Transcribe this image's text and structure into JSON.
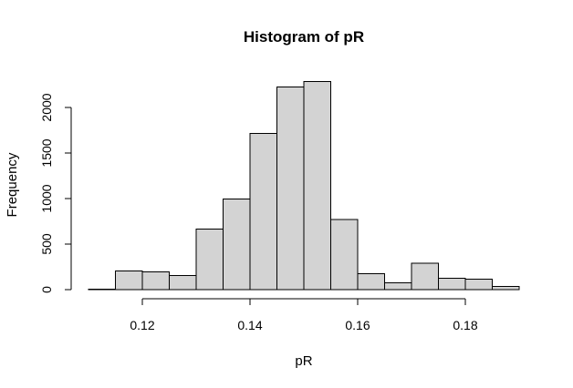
{
  "chart_data": {
    "type": "bar",
    "title": "Histogram of pR",
    "xlabel": "pR",
    "ylabel": "Frequency",
    "bin_edges": [
      0.11,
      0.115,
      0.12,
      0.125,
      0.13,
      0.135,
      0.14,
      0.145,
      0.15,
      0.155,
      0.16,
      0.165,
      0.17,
      0.175,
      0.18,
      0.185,
      0.19
    ],
    "values": [
      5,
      205,
      195,
      155,
      665,
      995,
      1715,
      2225,
      2285,
      770,
      175,
      75,
      290,
      125,
      115,
      35
    ],
    "xlim": [
      0.11,
      0.19
    ],
    "ylim": [
      0,
      2300
    ],
    "x_ticks": [
      0.12,
      0.14,
      0.16,
      0.18
    ],
    "x_tick_labels": [
      "0.12",
      "0.14",
      "0.16",
      "0.18"
    ],
    "y_ticks": [
      0,
      500,
      1000,
      1500,
      2000
    ],
    "y_tick_labels": [
      "0",
      "500",
      "1000",
      "1500",
      "2000"
    ],
    "grid": false,
    "legend": "none",
    "colors": {
      "bar_fill": "#d3d3d3",
      "bar_stroke": "#000000"
    }
  }
}
